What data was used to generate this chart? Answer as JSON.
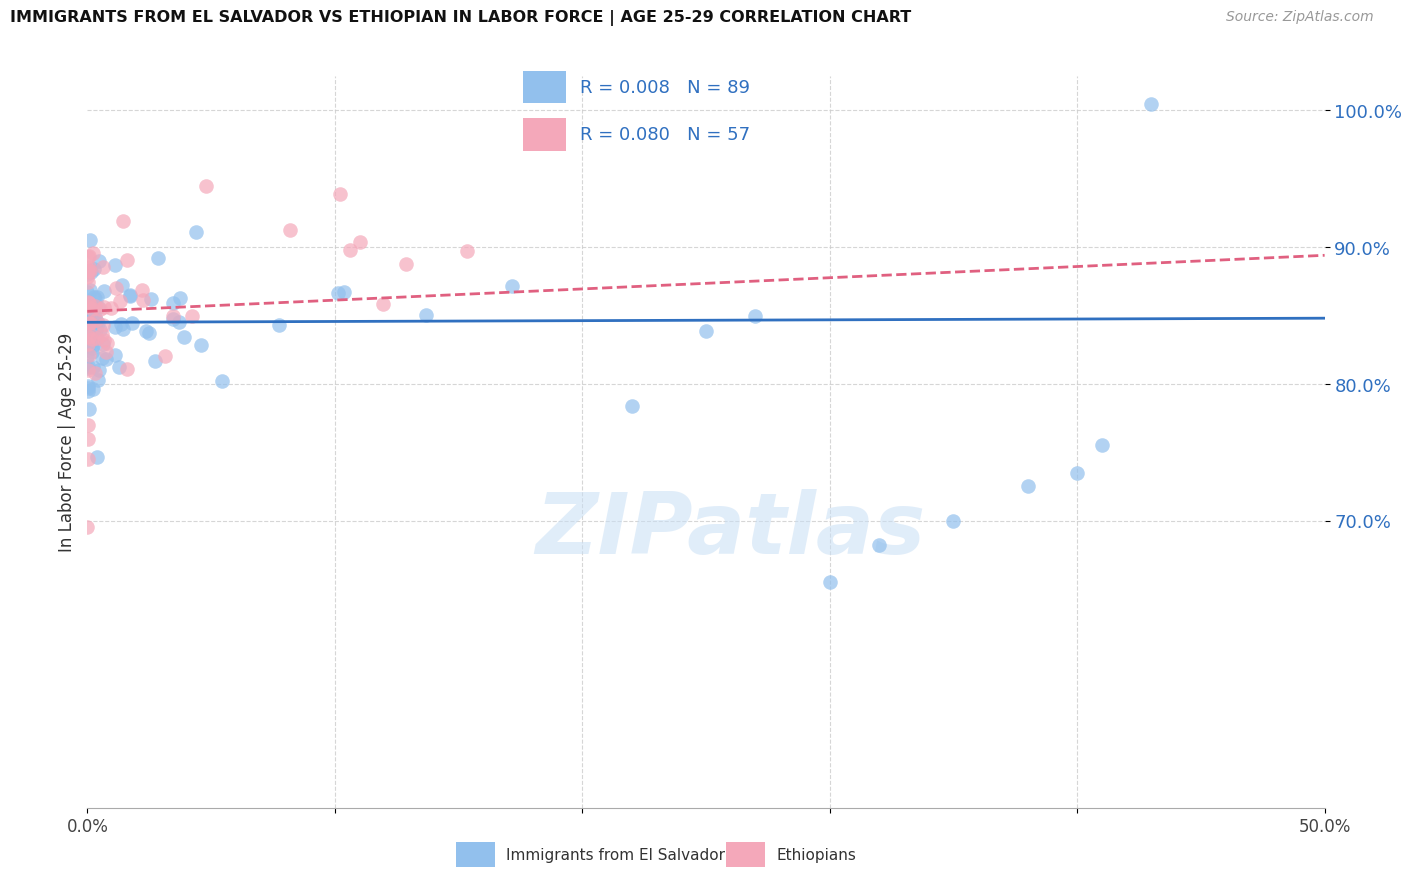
{
  "title": "IMMIGRANTS FROM EL SALVADOR VS ETHIOPIAN IN LABOR FORCE | AGE 25-29 CORRELATION CHART",
  "source": "Source: ZipAtlas.com",
  "ylabel": "In Labor Force | Age 25-29",
  "legend_label1": "Immigrants from El Salvador",
  "legend_label2": "Ethiopians",
  "R1": "0.008",
  "N1": "89",
  "R2": "0.080",
  "N2": "57",
  "color_blue": "#92C0ED",
  "color_pink": "#F4A8BA",
  "color_blue_line": "#3070C0",
  "color_pink_line": "#E06080",
  "xmin": 0.0,
  "xmax": 0.5,
  "ymin": 0.49,
  "ymax": 1.025,
  "yticks": [
    0.7,
    0.8,
    0.9,
    1.0
  ],
  "ytick_labels": [
    "70.0%",
    "80.0%",
    "90.0%",
    "100.0%"
  ],
  "xticks": [
    0.0,
    0.1,
    0.2,
    0.3,
    0.4,
    0.5
  ],
  "xtick_labels": [
    "0.0%",
    "",
    "",
    "",
    "",
    "50.0%"
  ],
  "blue_line_y0": 0.845,
  "blue_line_y1": 0.848,
  "pink_line_y0": 0.855,
  "pink_line_y1": 0.895,
  "watermark_text": "ZIPatlas",
  "watermark_color": "#C8DFF5"
}
